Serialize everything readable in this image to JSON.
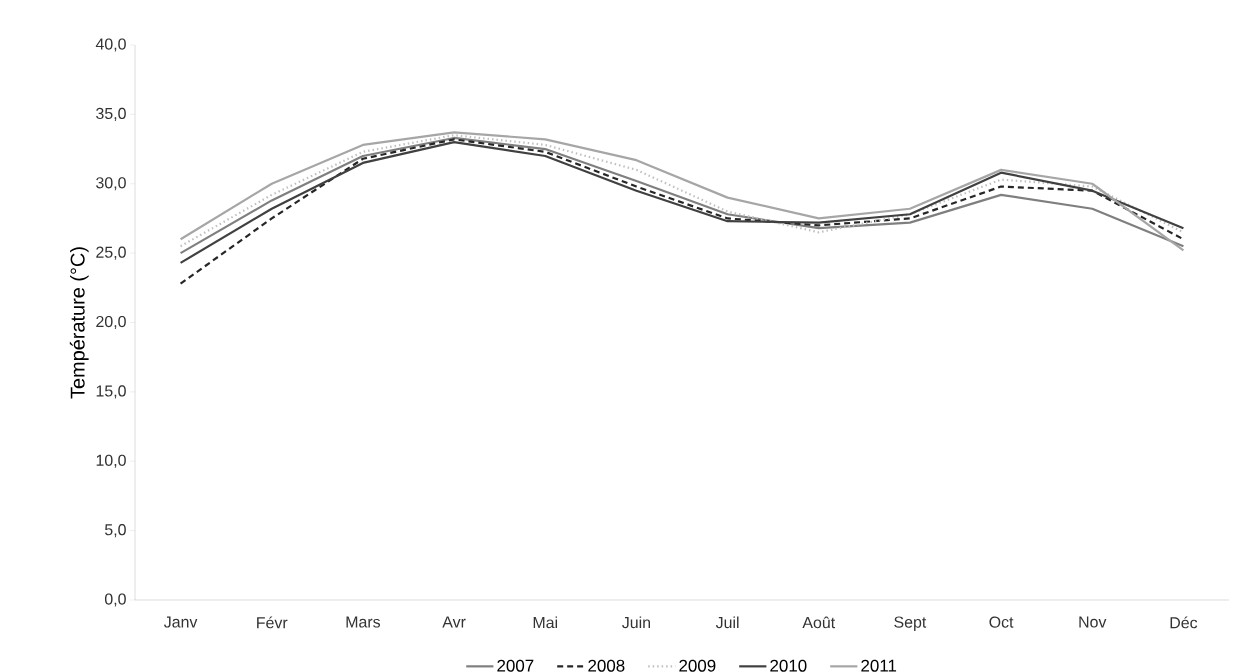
{
  "chart_data": {
    "type": "line",
    "ylabel": "Température (°C)",
    "categories": [
      "Janv",
      "Févr",
      "Mars",
      "Avr",
      "Mai",
      "Juin",
      "Juil",
      "Août",
      "Sept",
      "Oct",
      "Nov",
      "Déc"
    ],
    "series": [
      {
        "name": "2007",
        "color": "#7f7f7f",
        "line_style": "solid",
        "values": [
          25.0,
          28.8,
          32.0,
          33.3,
          32.5,
          30.2,
          27.8,
          26.8,
          27.2,
          29.2,
          28.2,
          25.5
        ]
      },
      {
        "name": "2008",
        "color": "#262626",
        "line_style": "dashed",
        "values": [
          22.8,
          27.5,
          31.8,
          33.2,
          32.3,
          29.8,
          27.5,
          27.0,
          27.5,
          29.8,
          29.5,
          26.0
        ]
      },
      {
        "name": "2009",
        "color": "#bfbfbf",
        "line_style": "dotted",
        "values": [
          25.5,
          29.2,
          32.3,
          33.5,
          32.8,
          31.0,
          28.0,
          26.5,
          27.8,
          30.3,
          29.8,
          26.5
        ]
      },
      {
        "name": "2010",
        "color": "#404040",
        "line_style": "solid",
        "values": [
          24.3,
          28.2,
          31.5,
          33.0,
          32.0,
          29.5,
          27.3,
          27.2,
          27.8,
          30.8,
          29.5,
          26.8
        ]
      },
      {
        "name": "2011",
        "color": "#a6a6a6",
        "line_style": "solid",
        "values": [
          26.0,
          30.0,
          32.8,
          33.7,
          33.2,
          31.7,
          29.0,
          27.5,
          28.2,
          31.0,
          30.0,
          25.2
        ]
      }
    ],
    "ylim": [
      0,
      40
    ],
    "yticks": [
      {
        "value": 0,
        "label": "0,0"
      },
      {
        "value": 5,
        "label": "5,0"
      },
      {
        "value": 10,
        "label": "10,0"
      },
      {
        "value": 15,
        "label": "15,0"
      },
      {
        "value": 20,
        "label": "20,0"
      },
      {
        "value": 25,
        "label": "25,0"
      },
      {
        "value": 30,
        "label": "30,0"
      },
      {
        "value": 35,
        "label": "35,0"
      },
      {
        "value": 40,
        "label": "40,0"
      }
    ],
    "grid": false,
    "legend": "bottom",
    "marker": "none"
  }
}
